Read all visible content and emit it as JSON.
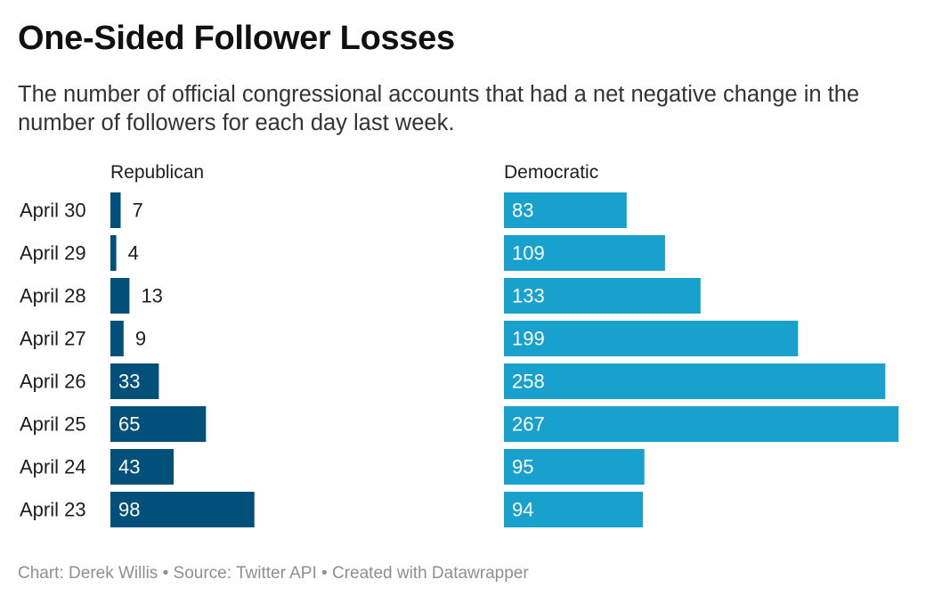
{
  "title": "One-Sided Follower Losses",
  "subtitle": "The number of official congressional accounts that had a net negative change in the number of followers for each day last week.",
  "footer": {
    "credit_label": "Chart:",
    "credit_name": "Derek Willis",
    "source_label": "Source:",
    "source_name": "Twitter API",
    "created_with": "Created with Datawrapper",
    "separator": "•"
  },
  "colors": {
    "republican": "#00507a",
    "democratic": "#18a1cd",
    "label_inside": "#ffffff",
    "label_outside": "#1d1d1d"
  },
  "chart_data": {
    "type": "bar",
    "orientation": "horizontal",
    "categories": [
      "April 30",
      "April 29",
      "April 28",
      "April 27",
      "April 26",
      "April 25",
      "April 24",
      "April 23"
    ],
    "series": [
      {
        "name": "Republican",
        "values": [
          7,
          4,
          13,
          9,
          33,
          65,
          43,
          98
        ]
      },
      {
        "name": "Democratic",
        "values": [
          83,
          109,
          133,
          199,
          258,
          267,
          95,
          94
        ]
      }
    ],
    "xlim": [
      0,
      267
    ],
    "grid": false,
    "legend": "panel headers"
  }
}
